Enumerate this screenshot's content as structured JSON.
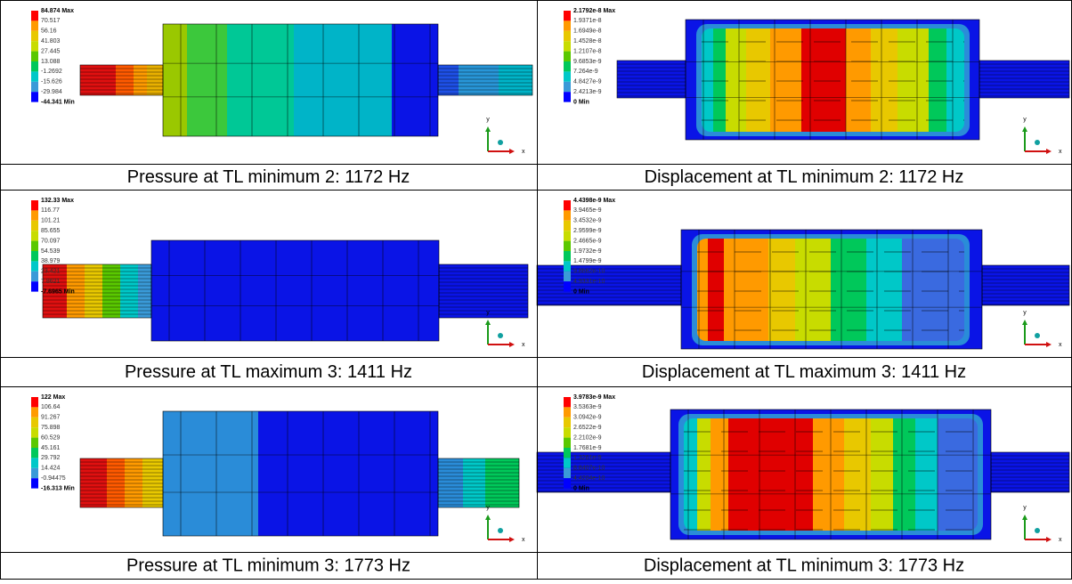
{
  "figure": {
    "rows": [
      [
        {
          "legend": [
            "84.874 Max",
            "70.517",
            "56.16",
            "41.803",
            "27.445",
            "13.088",
            "-1.2692",
            "-15.626",
            "-29.984",
            "-44.341 Min"
          ],
          "caption": "Pressure at TL minimum 2: 1172 Hz"
        },
        {
          "legend": [
            "2.1792e-8 Max",
            "1.9371e-8",
            "1.6949e-8",
            "1.4528e-8",
            "1.2107e-8",
            "9.6853e-9",
            "7.264e-9",
            "4.8427e-9",
            "2.4213e-9",
            "0 Min"
          ],
          "caption": "Displacement at TL minimum 2: 1172 Hz"
        }
      ],
      [
        {
          "legend": [
            "132.33 Max",
            "116.77",
            "101.21",
            "85.655",
            "70.097",
            "54.539",
            "38.979",
            "23.421",
            "7.8621",
            "-7.6965 Min"
          ],
          "caption": "Pressure at TL maximum 3: 1411 Hz"
        },
        {
          "legend": [
            "4.4398e-9 Max",
            "3.9465e-9",
            "3.4532e-9",
            "2.9599e-9",
            "2.4665e-9",
            "1.9732e-9",
            "1.4799e-9",
            "9.8662e-10",
            "4.9331e-10",
            "0 Min"
          ],
          "caption": "Displacement at TL maximum 3: 1411 Hz"
        }
      ],
      [
        {
          "legend": [
            "122 Max",
            "106.64",
            "91.267",
            "75.898",
            "60.529",
            "45.161",
            "29.792",
            "14.424",
            "-0.94475",
            "-16.313 Min"
          ],
          "caption": "Pressure at TL minimum 3: 1773 Hz"
        },
        {
          "legend": [
            "3.9783e-9 Max",
            "3.5363e-9",
            "3.0942e-9",
            "2.6522e-9",
            "2.2102e-9",
            "1.7681e-9",
            "1.3261e-9",
            "8.8407e-10",
            "4.4204e-10",
            "0 Min"
          ],
          "caption": "Displacement at TL minimum 3: 1773 Hz"
        }
      ]
    ],
    "triad_y": "y",
    "triad_x": "x"
  }
}
